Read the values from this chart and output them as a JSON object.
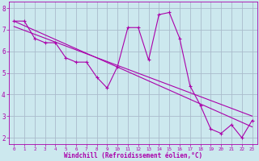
{
  "xlabel": "Windchill (Refroidissement éolien,°C)",
  "bg_color": "#cce8ee",
  "grid_color": "#aabbcc",
  "line_color": "#aa00aa",
  "xlim": [
    -0.5,
    23.5
  ],
  "ylim": [
    1.7,
    8.3
  ],
  "yticks": [
    2,
    3,
    4,
    5,
    6,
    7,
    8
  ],
  "xticks": [
    0,
    1,
    2,
    3,
    4,
    5,
    6,
    7,
    8,
    9,
    10,
    11,
    12,
    13,
    14,
    15,
    16,
    17,
    18,
    19,
    20,
    21,
    22,
    23
  ],
  "main_data_x": [
    0,
    1,
    2,
    3,
    4,
    5,
    6,
    7,
    8,
    9,
    10,
    11,
    12,
    13,
    14,
    15,
    16,
    17,
    18,
    19,
    20,
    21,
    22,
    23
  ],
  "main_data_y": [
    7.4,
    7.4,
    6.6,
    6.4,
    6.4,
    5.7,
    5.5,
    5.5,
    4.8,
    4.3,
    5.3,
    7.1,
    7.1,
    5.6,
    7.7,
    7.8,
    6.6,
    4.4,
    3.5,
    2.4,
    2.2,
    2.6,
    2.0,
    2.8
  ],
  "trend1_x": [
    0,
    23
  ],
  "trend1_y": [
    7.4,
    2.5
  ],
  "trend2_x": [
    0,
    23
  ],
  "trend2_y": [
    7.15,
    3.0
  ]
}
